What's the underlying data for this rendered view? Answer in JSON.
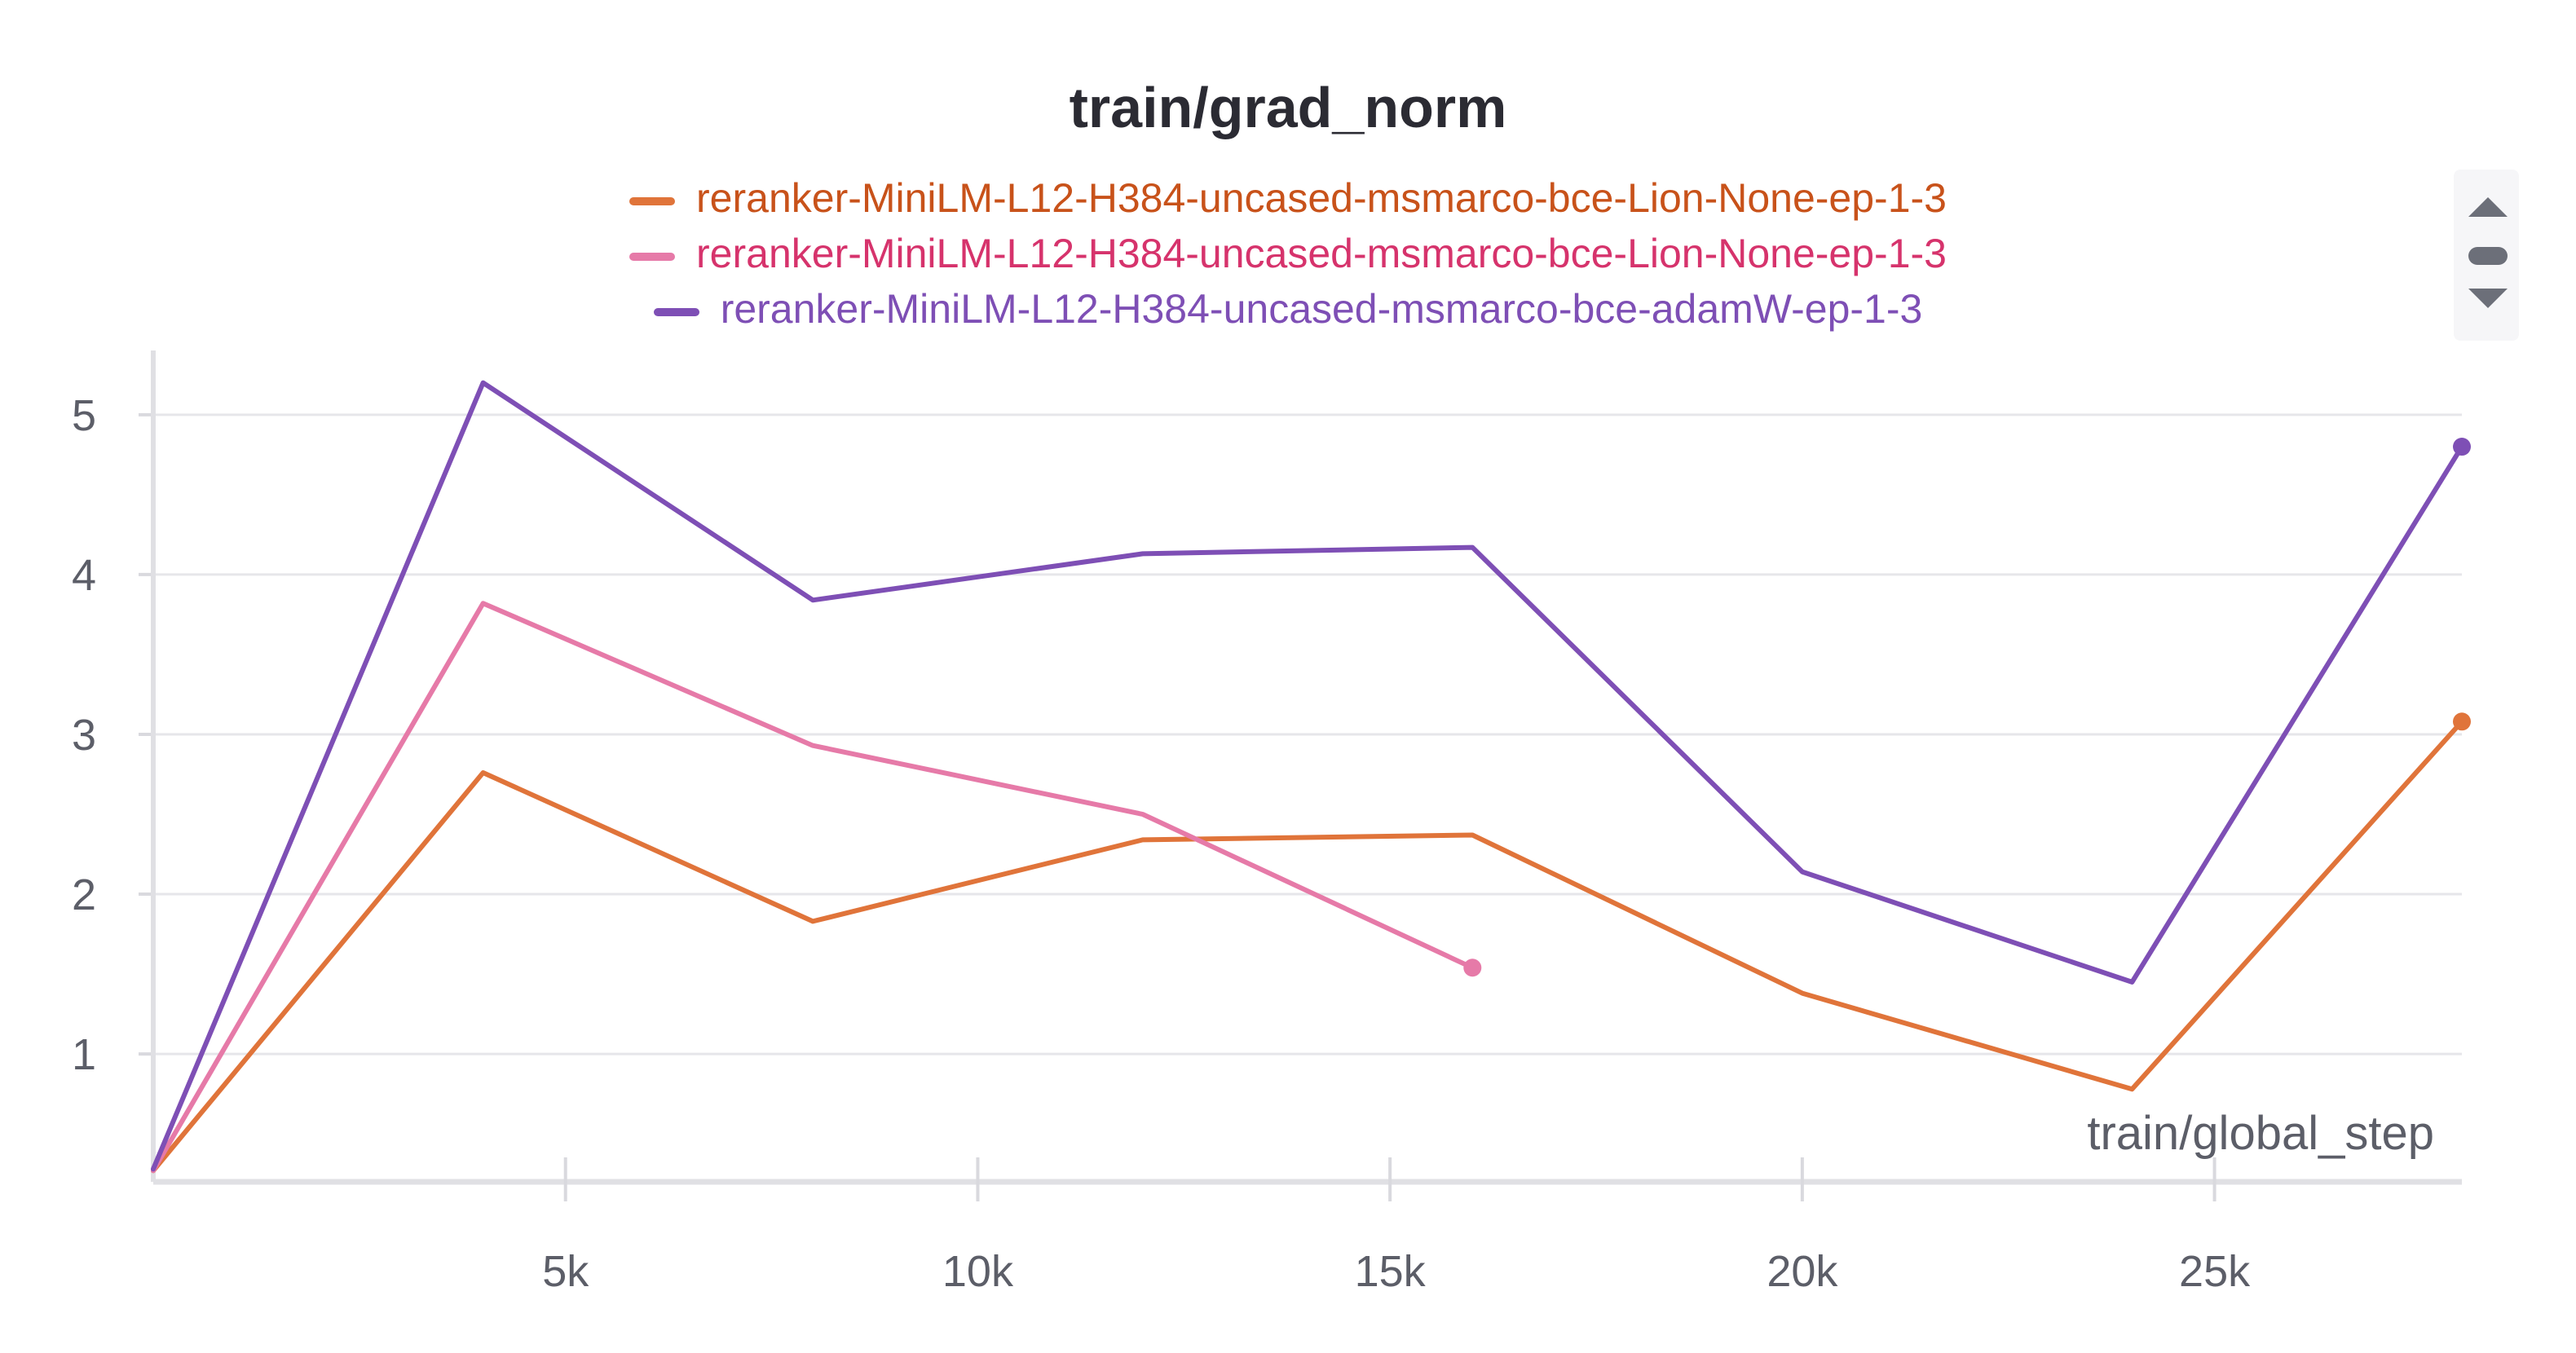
{
  "chart_data": {
    "type": "line",
    "title": "train/grad_norm",
    "xlabel": "train/global_step",
    "ylabel": "",
    "xlim": [
      0,
      28000
    ],
    "ylim": [
      0.2,
      5.3
    ],
    "x_ticks": [
      5000,
      10000,
      15000,
      20000,
      25000
    ],
    "x_tick_labels": [
      "5k",
      "10k",
      "15k",
      "20k",
      "25k"
    ],
    "y_ticks": [
      1,
      2,
      3,
      4,
      5
    ],
    "y_tick_labels": [
      "1",
      "2",
      "3",
      "4",
      "5"
    ],
    "grid": true,
    "legend_position": "top-center",
    "series": [
      {
        "name": "reranker-MiniLM-L12-H384-uncased-msmarco-bce-Lion-None-ep-1-3",
        "color": "#e0743a",
        "legend_color": "#c8521a",
        "x": [
          0,
          4000,
          8000,
          12000,
          16000,
          20000,
          24000,
          28000
        ],
        "y": [
          0.27,
          2.76,
          1.83,
          2.34,
          2.37,
          1.38,
          0.78,
          3.08
        ]
      },
      {
        "name": "reranker-MiniLM-L12-H384-uncased-msmarco-bce-Lion-None-ep-1-3",
        "color": "#e67aa8",
        "legend_color": "#d6336c",
        "x": [
          0,
          4000,
          8000,
          12000,
          16000
        ],
        "y": [
          0.27,
          3.82,
          2.93,
          2.5,
          1.54
        ]
      },
      {
        "name": "reranker-MiniLM-L12-H384-uncased-msmarco-bce-adamW-ep-1-3",
        "color": "#7e4fb5",
        "legend_color": "#7e4fb5",
        "x": [
          0,
          4000,
          8000,
          12000,
          16000,
          20000,
          24000,
          28000
        ],
        "y": [
          0.28,
          5.2,
          3.84,
          4.13,
          4.17,
          2.14,
          1.45,
          4.8
        ]
      }
    ]
  }
}
